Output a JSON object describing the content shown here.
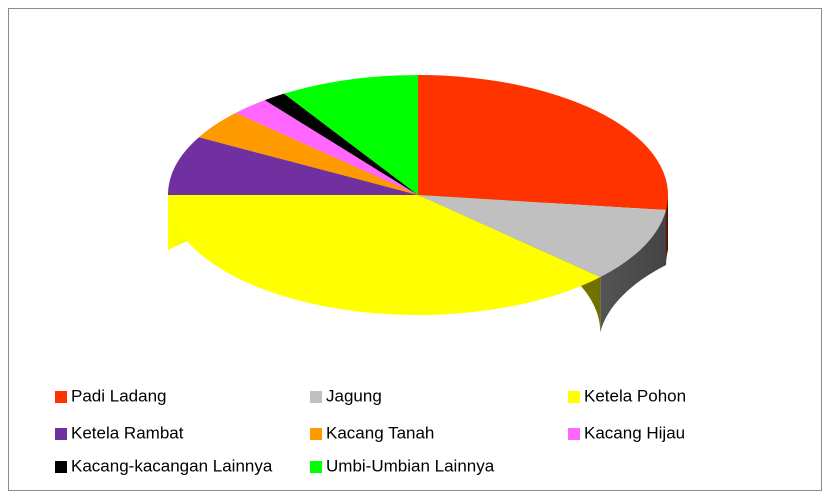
{
  "chart_data": {
    "type": "pie",
    "categories": [
      "Padi Ladang",
      "Jagung",
      "Ketela Pohon",
      "Ketela Rambat",
      "Kacang Tanah",
      "Kacang Hijau",
      "Kacang-kacangan Lainnya",
      "Umbi-Umbian Lainnya"
    ],
    "values": [
      27,
      10,
      38,
      8,
      4,
      2.5,
      1.5,
      9
    ],
    "colors": [
      "#ff3300",
      "#c0c0c0",
      "#ffff00",
      "#7030a0",
      "#ff9900",
      "#ff66ff",
      "#000000",
      "#00ff00"
    ]
  }
}
